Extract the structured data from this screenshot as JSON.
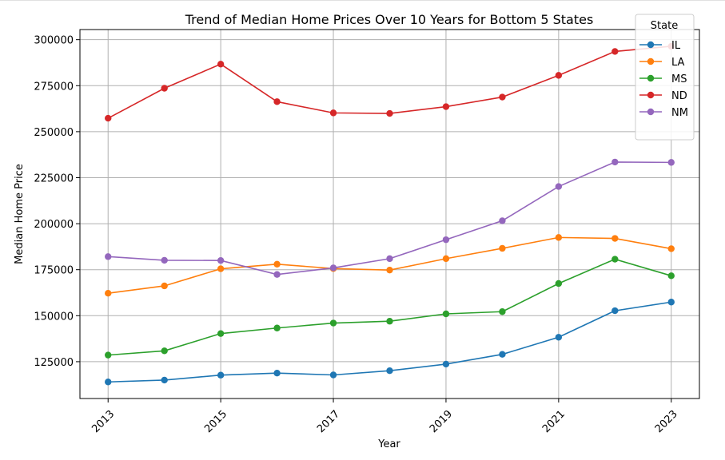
{
  "chart_data": {
    "type": "line",
    "title": "Trend of Median Home Prices Over 10 Years for Bottom 5 States",
    "xlabel": "Year",
    "ylabel": "Median Home Price",
    "x": [
      2013,
      2014,
      2015,
      2016,
      2017,
      2018,
      2019,
      2020,
      2021,
      2022,
      2023
    ],
    "xticks": [
      2013,
      2015,
      2017,
      2019,
      2021,
      2023
    ],
    "yticks": [
      125000,
      150000,
      175000,
      200000,
      225000,
      250000,
      275000,
      300000
    ],
    "xlim": [
      2012.5,
      2023.5
    ],
    "ylim": [
      105000,
      305500
    ],
    "grid": true,
    "legend": {
      "title": "State",
      "placement": "top-right"
    },
    "series": [
      {
        "name": "IL",
        "color": "#1f77b4",
        "values": [
          114000,
          115000,
          117700,
          118800,
          117800,
          120100,
          123700,
          129000,
          138300,
          152700,
          157400
        ]
      },
      {
        "name": "LA",
        "color": "#ff7f0e",
        "values": [
          162200,
          166200,
          175500,
          178000,
          175600,
          174800,
          181000,
          186600,
          192500,
          192000,
          186400
        ]
      },
      {
        "name": "MS",
        "color": "#2ca02c",
        "values": [
          128600,
          130900,
          140300,
          143300,
          146000,
          147000,
          151000,
          152200,
          167500,
          180700,
          171700
        ]
      },
      {
        "name": "ND",
        "color": "#d62728",
        "values": [
          257300,
          273600,
          286700,
          266300,
          260200,
          259900,
          263600,
          268800,
          280600,
          293600,
          296400
        ]
      },
      {
        "name": "NM",
        "color": "#9467bd",
        "values": [
          182100,
          180100,
          180000,
          172400,
          176000,
          181000,
          191300,
          201600,
          220200,
          233500,
          233300
        ]
      }
    ]
  }
}
